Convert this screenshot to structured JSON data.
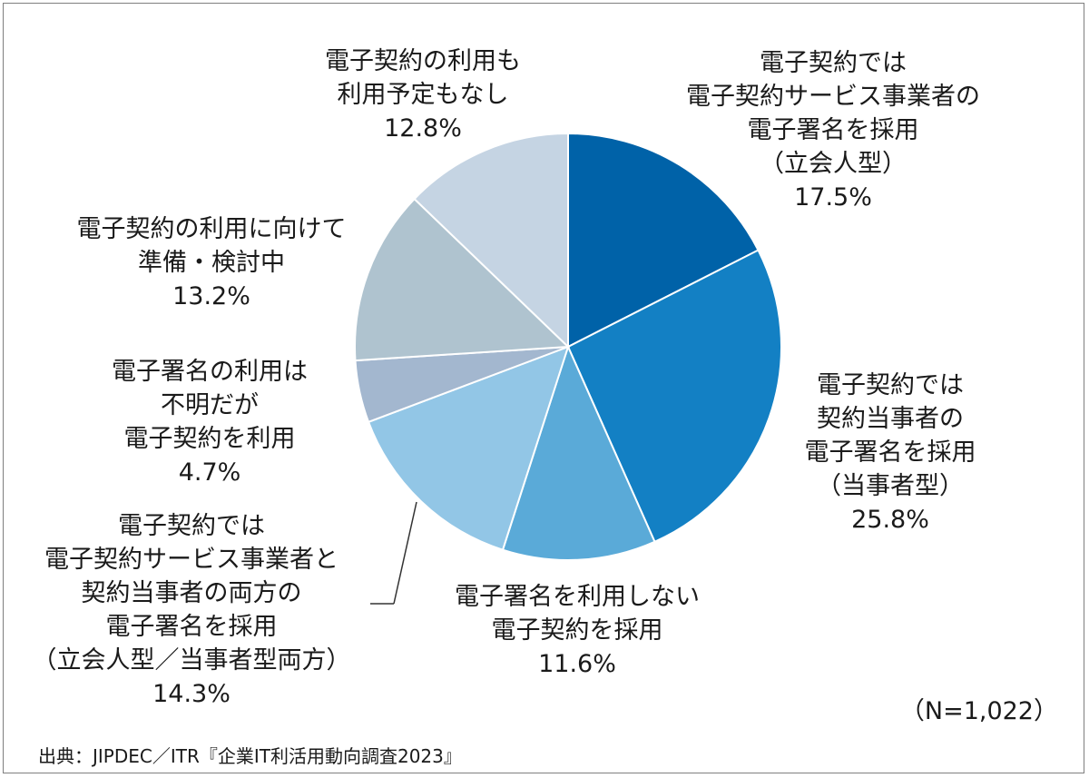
{
  "chart_data": {
    "type": "pie",
    "n_label": "（N=1,022）",
    "source": "出典：JIPDEC／ITR『企業IT利活用動向調査2023』",
    "start_angle_deg": 0,
    "direction": "clockwise",
    "slices": [
      {
        "lines": [
          "電子契約では",
          "電子契約サービス事業者の",
          "電子署名を採用",
          "（立会人型）"
        ],
        "pct": "17.5%",
        "value": 17.5,
        "color": "#0062a8"
      },
      {
        "lines": [
          "電子契約では",
          "契約当事者の",
          "電子署名を採用",
          "（当事者型）"
        ],
        "pct": "25.8%",
        "value": 25.8,
        "color": "#1380c4"
      },
      {
        "lines": [
          "電子署名を利用しない",
          "電子契約を採用"
        ],
        "pct": "11.6%",
        "value": 11.6,
        "color": "#5aaad8"
      },
      {
        "lines": [
          "電子契約では",
          "電子契約サービス事業者と",
          "契約当事者の両方の",
          "電子署名を採用",
          "（立会人型／当事者型両方）"
        ],
        "pct": "14.3%",
        "value": 14.3,
        "color": "#92c6e6"
      },
      {
        "lines": [
          "電子署名の利用は",
          "不明だが",
          "電子契約を利用"
        ],
        "pct": "4.7%",
        "value": 4.7,
        "color": "#a3b7cf"
      },
      {
        "lines": [
          "電子契約の利用に向けて",
          "準備・検討中"
        ],
        "pct": "13.2%",
        "value": 13.2,
        "color": "#afc3cf"
      },
      {
        "lines": [
          "電子契約の利用も",
          "利用予定もなし"
        ],
        "pct": "12.8%",
        "value": 12.8,
        "color": "#c5d4e3"
      }
    ]
  }
}
